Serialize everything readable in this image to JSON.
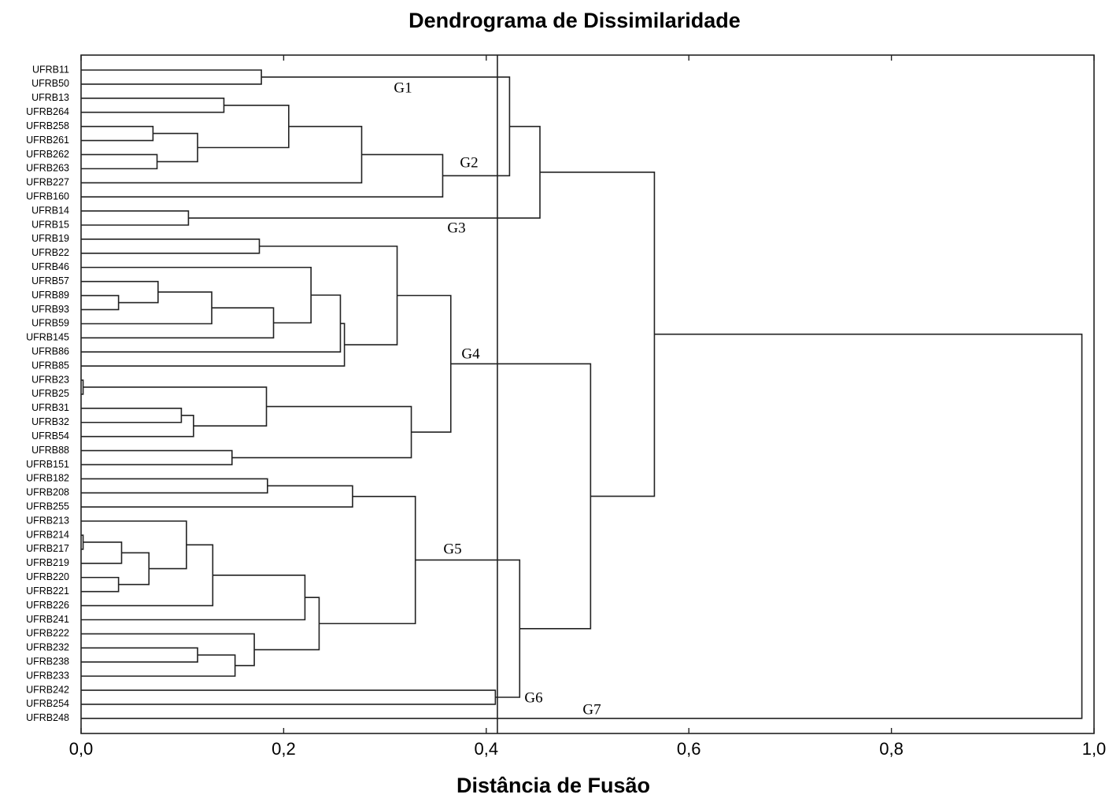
{
  "chart_data": {
    "type": "dendrogram",
    "title": "Dendrograma de Dissimilaridade",
    "x_label": "Distância de Fusão",
    "xlim": [
      0,
      1
    ],
    "xticks": [
      {
        "value": 0,
        "label": "0,0"
      },
      {
        "value": 0.2,
        "label": "0,2"
      },
      {
        "value": 0.4,
        "label": "0,4"
      },
      {
        "value": 0.6,
        "label": "0,6"
      },
      {
        "value": 0.8,
        "label": "0,8"
      },
      {
        "value": 1,
        "label": "1,0"
      }
    ],
    "cut": 0.411,
    "annotations": [
      "G1",
      "G2",
      "G3",
      "G4",
      "G5",
      "G6",
      "G7"
    ],
    "tree": {
      "height": 0.988,
      "children": [
        {
          "height": 0.566,
          "children": [
            {
              "height": 0.453,
              "children": [
                {
                  "height": 0.423,
                  "children": [
                    {
                      "height": 0.178,
                      "children": [
                        {
                          "label": "UFRB11"
                        },
                        {
                          "label": "UFRB50"
                        }
                      ]
                    },
                    {
                      "height": 0.357,
                      "children": [
                        {
                          "height": 0.277,
                          "children": [
                            {
                              "height": 0.205,
                              "children": [
                                {
                                  "height": 0.141,
                                  "children": [
                                    {
                                      "label": "UFRB13"
                                    },
                                    {
                                      "label": "UFRB264"
                                    }
                                  ]
                                },
                                {
                                  "height": 0.115,
                                  "children": [
                                    {
                                      "height": 0.071,
                                      "children": [
                                        {
                                          "label": "UFRB258"
                                        },
                                        {
                                          "label": "UFRB261"
                                        }
                                      ]
                                    },
                                    {
                                      "height": 0.075,
                                      "children": [
                                        {
                                          "label": "UFRB262"
                                        },
                                        {
                                          "label": "UFRB263"
                                        }
                                      ]
                                    }
                                  ]
                                }
                              ]
                            },
                            {
                              "label": "UFRB227"
                            }
                          ]
                        },
                        {
                          "label": "UFRB160"
                        }
                      ]
                    }
                  ]
                },
                {
                  "height": 0.106,
                  "children": [
                    {
                      "label": "UFRB14"
                    },
                    {
                      "label": "UFRB15"
                    }
                  ]
                }
              ]
            },
            {
              "height": 0.503,
              "children": [
                {
                  "height": 0.365,
                  "children": [
                    {
                      "height": 0.312,
                      "children": [
                        {
                          "height": 0.176,
                          "children": [
                            {
                              "label": "UFRB19"
                            },
                            {
                              "label": "UFRB22"
                            }
                          ]
                        },
                        {
                          "height": 0.26,
                          "children": [
                            {
                              "height": 0.256,
                              "children": [
                                {
                                  "height": 0.227,
                                  "children": [
                                    {
                                      "label": "UFRB46"
                                    },
                                    {
                                      "height": 0.19,
                                      "children": [
                                        {
                                          "height": 0.129,
                                          "children": [
                                            {
                                              "height": 0.076,
                                              "children": [
                                                {
                                                  "label": "UFRB57"
                                                },
                                                {
                                                  "height": 0.037,
                                                  "children": [
                                                    {
                                                      "label": "UFRB89"
                                                    },
                                                    {
                                                      "label": "UFRB93"
                                                    }
                                                  ]
                                                }
                                              ]
                                            },
                                            {
                                              "label": "UFRB59"
                                            }
                                          ]
                                        },
                                        {
                                          "label": "UFRB145"
                                        }
                                      ]
                                    }
                                  ]
                                },
                                {
                                  "label": "UFRB86"
                                }
                              ]
                            },
                            {
                              "label": "UFRB85"
                            }
                          ]
                        }
                      ]
                    },
                    {
                      "height": 0.326,
                      "children": [
                        {
                          "height": 0.183,
                          "children": [
                            {
                              "height": 0.002,
                              "children": [
                                {
                                  "label": "UFRB23"
                                },
                                {
                                  "label": "UFRB25"
                                }
                              ]
                            },
                            {
                              "height": 0.111,
                              "children": [
                                {
                                  "height": 0.099,
                                  "children": [
                                    {
                                      "label": "UFRB31"
                                    },
                                    {
                                      "label": "UFRB32"
                                    }
                                  ]
                                },
                                {
                                  "label": "UFRB54"
                                }
                              ]
                            }
                          ]
                        },
                        {
                          "height": 0.149,
                          "children": [
                            {
                              "label": "UFRB88"
                            },
                            {
                              "label": "UFRB151"
                            }
                          ]
                        }
                      ]
                    }
                  ]
                },
                {
                  "height": 0.433,
                  "children": [
                    {
                      "height": 0.33,
                      "children": [
                        {
                          "height": 0.268,
                          "children": [
                            {
                              "height": 0.184,
                              "children": [
                                {
                                  "label": "UFRB182"
                                },
                                {
                                  "label": "UFRB208"
                                }
                              ]
                            },
                            {
                              "label": "UFRB255"
                            }
                          ]
                        },
                        {
                          "height": 0.235,
                          "children": [
                            {
                              "height": 0.221,
                              "children": [
                                {
                                  "height": 0.13,
                                  "children": [
                                    {
                                      "height": 0.104,
                                      "children": [
                                        {
                                          "label": "UFRB213"
                                        },
                                        {
                                          "height": 0.067,
                                          "children": [
                                            {
                                              "height": 0.04,
                                              "children": [
                                                {
                                                  "height": 0.002,
                                                  "children": [
                                                    {
                                                      "label": "UFRB214"
                                                    },
                                                    {
                                                      "label": "UFRB217"
                                                    }
                                                  ]
                                                },
                                                {
                                                  "label": "UFRB219"
                                                }
                                              ]
                                            },
                                            {
                                              "height": 0.037,
                                              "children": [
                                                {
                                                  "label": "UFRB220"
                                                },
                                                {
                                                  "label": "UFRB221"
                                                }
                                              ]
                                            }
                                          ]
                                        }
                                      ]
                                    },
                                    {
                                      "label": "UFRB226"
                                    }
                                  ]
                                },
                                {
                                  "label": "UFRB241"
                                }
                              ]
                            },
                            {
                              "height": 0.171,
                              "children": [
                                {
                                  "label": "UFRB222"
                                },
                                {
                                  "height": 0.152,
                                  "children": [
                                    {
                                      "height": 0.115,
                                      "children": [
                                        {
                                          "label": "UFRB232"
                                        },
                                        {
                                          "label": "UFRB238"
                                        }
                                      ]
                                    },
                                    {
                                      "label": "UFRB233"
                                    }
                                  ]
                                }
                              ]
                            }
                          ]
                        }
                      ]
                    },
                    {
                      "height": 0.409,
                      "children": [
                        {
                          "label": "UFRB242"
                        },
                        {
                          "label": "UFRB254"
                        }
                      ]
                    }
                  ]
                }
              ]
            }
          ]
        },
        {
          "label": "UFRB248"
        }
      ]
    }
  }
}
